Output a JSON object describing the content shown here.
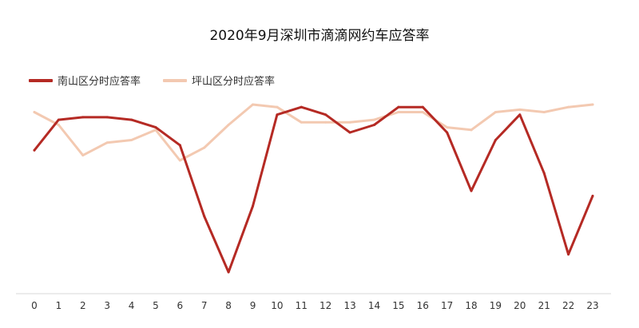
{
  "chart_data": {
    "type": "line",
    "title": "2020年9月深圳市滴滴网约车应答率",
    "xlabel": "",
    "ylabel": "",
    "categories": [
      "0",
      "1",
      "2",
      "3",
      "4",
      "5",
      "6",
      "7",
      "8",
      "9",
      "10",
      "11",
      "12",
      "13",
      "14",
      "15",
      "16",
      "17",
      "18",
      "19",
      "20",
      "21",
      "22",
      "23"
    ],
    "ylim": [
      0,
      1
    ],
    "grid": false,
    "legend": "top-left",
    "series": [
      {
        "name": "南山区分时应答率",
        "color": "#b52a24",
        "values": [
          0.58,
          0.7,
          0.71,
          0.71,
          0.7,
          0.67,
          0.6,
          0.32,
          0.1,
          0.36,
          0.72,
          0.75,
          0.72,
          0.65,
          0.68,
          0.75,
          0.75,
          0.65,
          0.42,
          0.62,
          0.72,
          0.49,
          0.17,
          0.4
        ]
      },
      {
        "name": "坪山区分时应答率",
        "color": "#f3c9b1",
        "values": [
          0.73,
          0.68,
          0.56,
          0.61,
          0.62,
          0.66,
          0.54,
          0.59,
          0.68,
          0.76,
          0.75,
          0.69,
          0.69,
          0.69,
          0.7,
          0.73,
          0.73,
          0.67,
          0.66,
          0.73,
          0.74,
          0.73,
          0.75,
          0.76
        ]
      }
    ]
  }
}
